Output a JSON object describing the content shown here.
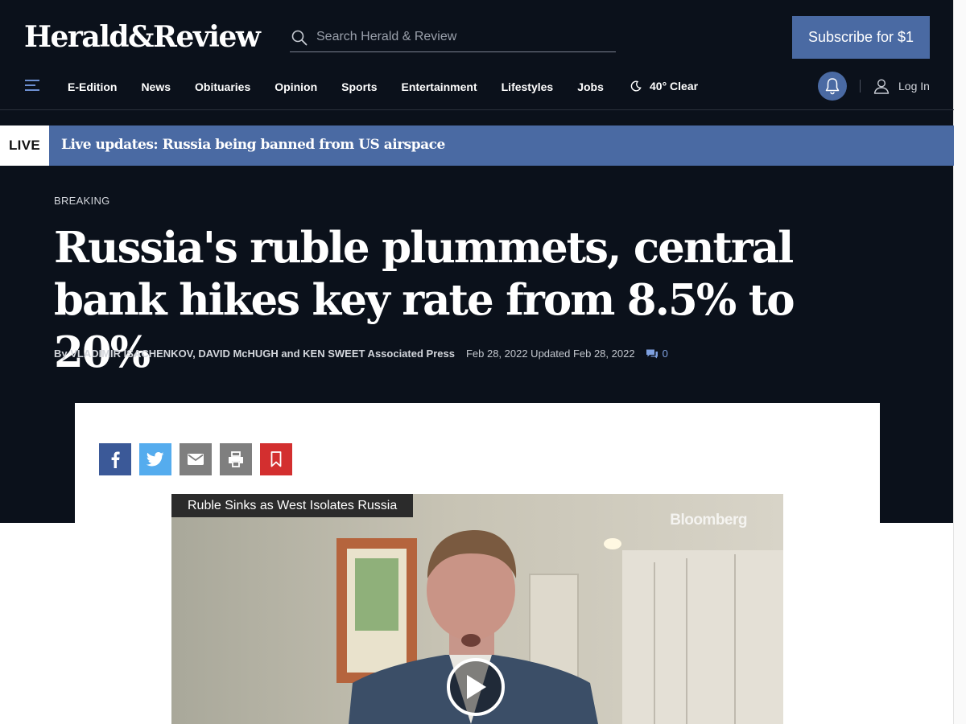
{
  "site": {
    "logo_text": "Herald&Review",
    "search_placeholder": "Search Herald & Review",
    "subscribe_label": "Subscribe for $1"
  },
  "nav": {
    "items": [
      "E-Edition",
      "News",
      "Obituaries",
      "Opinion",
      "Sports",
      "Entertainment",
      "Lifestyles",
      "Jobs"
    ],
    "weather": "40° Clear",
    "login_label": "Log In"
  },
  "live_banner": {
    "tag": "LIVE",
    "text": "Live updates: Russia being banned from US airspace"
  },
  "article": {
    "kicker": "BREAKING",
    "headline": "Russia's ruble plummets, central bank hikes key rate from 8.5% to 20%",
    "byline": "By VLADIMIR ISACHENKOV, DAVID McHUGH and KEN SWEET Associated Press",
    "dates": "Feb 28, 2022 Updated Feb 28, 2022",
    "comment_count": "0"
  },
  "share_icons": [
    "facebook-icon",
    "twitter-icon",
    "email-icon",
    "print-icon",
    "bookmark-icon"
  ],
  "video": {
    "title": "Ruble Sinks as West Isolates Russia",
    "brand_watermark": "Bloomberg"
  },
  "colors": {
    "header_bg": "#0b111b",
    "accent": "#4a6aa3",
    "facebook": "#3b5998",
    "twitter": "#55acee",
    "bookmark": "#d32f2f"
  }
}
